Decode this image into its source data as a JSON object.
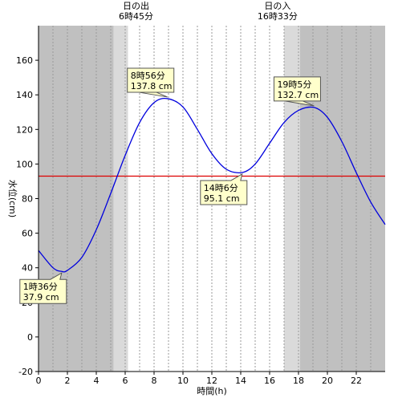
{
  "chart_data": {
    "type": "line",
    "title": "",
    "xlabel": "時間(h)",
    "ylabel": "水位(cm)",
    "xlim": [
      0,
      24
    ],
    "ylim": [
      -20,
      180
    ],
    "x_ticks": [
      0,
      2,
      4,
      6,
      8,
      10,
      12,
      14,
      16,
      18,
      20,
      22
    ],
    "y_ticks": [
      -20,
      0,
      20,
      40,
      60,
      80,
      100,
      120,
      140,
      160
    ],
    "grid": "vertical dotted lines every hour",
    "series": [
      {
        "color": "#0000dd",
        "x": [
          0,
          1,
          1.6,
          2,
          3,
          4,
          5,
          6,
          7,
          8,
          8.93,
          10,
          11,
          12,
          13,
          14.1,
          15,
          16,
          17,
          18,
          19.08,
          20,
          21,
          22,
          23,
          24
        ],
        "values": [
          50,
          40,
          37.9,
          38.5,
          46,
          62,
          83,
          105,
          124,
          135.5,
          137.8,
          133,
          120,
          106,
          97,
          95.1,
          100,
          112,
          124,
          131,
          132.7,
          127,
          113,
          95,
          78,
          65
        ]
      }
    ],
    "reference_line": {
      "value": 93,
      "color": "#dd0000"
    },
    "shading": {
      "night_color": "#c0c0c0",
      "twilight_color": "#dadada",
      "day_color": "#ffffff",
      "bands": [
        {
          "from": 0,
          "to": 5.2,
          "kind": "night"
        },
        {
          "from": 5.2,
          "to": 6.2,
          "kind": "twilight"
        },
        {
          "from": 6.2,
          "to": 17.0,
          "kind": "day"
        },
        {
          "from": 17.0,
          "to": 18.1,
          "kind": "twilight"
        },
        {
          "from": 18.1,
          "to": 24,
          "kind": "night"
        }
      ]
    },
    "sun_events": [
      {
        "x": 6.75,
        "title": "日の出",
        "time": "6時45分"
      },
      {
        "x": 16.55,
        "title": "日の入",
        "time": "16時33分"
      }
    ],
    "callouts": [
      {
        "x": 1.6,
        "y": 37.9,
        "line1": "1時36分",
        "line2": "37.9 cm",
        "side": "below"
      },
      {
        "x": 8.93,
        "y": 137.8,
        "line1": "8時56分",
        "line2": "137.8 cm",
        "side": "above"
      },
      {
        "x": 14.1,
        "y": 95.1,
        "line1": "14時6分",
        "line2": "95.1 cm",
        "side": "below"
      },
      {
        "x": 19.08,
        "y": 132.7,
        "line1": "19時5分",
        "line2": "132.7 cm",
        "side": "above"
      }
    ]
  }
}
